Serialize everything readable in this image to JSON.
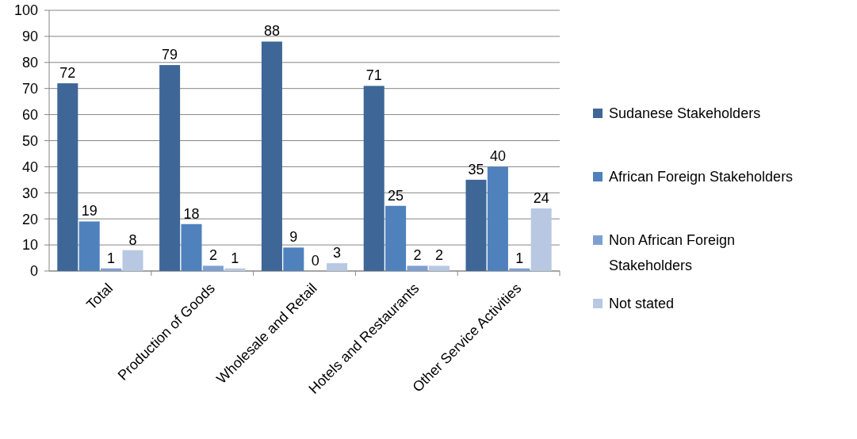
{
  "chart_data": {
    "type": "bar",
    "categories": [
      "Total",
      "Production of Goods",
      "Wholesale and Retail",
      "Hotels and Restaurants",
      "Other Service Activities"
    ],
    "series": [
      {
        "name": "Sudanese Stakeholders",
        "color": "#3e6797",
        "values": [
          72,
          79,
          88,
          71,
          35
        ]
      },
      {
        "name": "African Foreign Stakeholders",
        "color": "#4f81bd",
        "values": [
          19,
          18,
          9,
          25,
          40
        ]
      },
      {
        "name": "Non African Foreign Stakeholders",
        "color": "#7f9fcf",
        "values": [
          1,
          2,
          0,
          2,
          1
        ]
      },
      {
        "name": "Not stated",
        "color": "#b8c8e2",
        "values": [
          8,
          1,
          3,
          2,
          24
        ]
      }
    ],
    "ylim": [
      0,
      100
    ],
    "yticks": [
      0,
      10,
      20,
      30,
      40,
      50,
      60,
      70,
      80,
      90,
      100
    ],
    "grid": "y",
    "legend": "right",
    "data_labels": true
  }
}
